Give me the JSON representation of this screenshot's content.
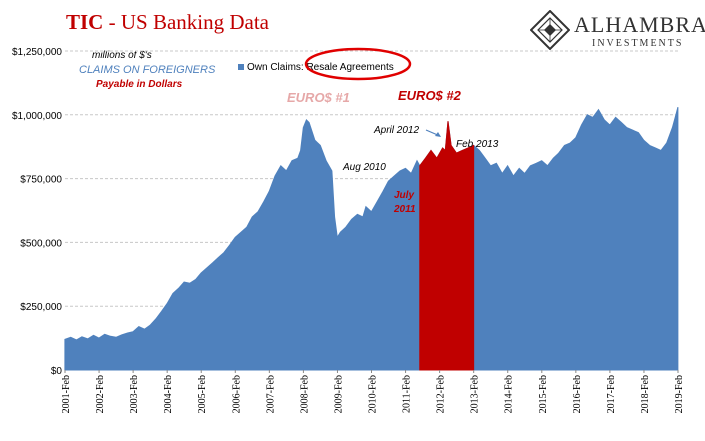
{
  "header": {
    "title_bold": "TIC",
    "title_rest": " - US Banking Data",
    "logo_name": "ALHAMBRA",
    "logo_sub": "INVESTMENTS"
  },
  "notes": {
    "units": "millions of $'s",
    "claims": "CLAIMS ON FOREIGNERS",
    "payable": "Payable in Dollars"
  },
  "colors": {
    "series": "#4f81bd",
    "highlight": "#c00000",
    "circle": "#e00000",
    "title": "#c00000"
  },
  "chart_data": {
    "type": "area",
    "legend": "Own Claims: Resale Agreements",
    "ylim": [
      0,
      1250000
    ],
    "yticks": [
      {
        "v": 0,
        "label": "$0"
      },
      {
        "v": 250000,
        "label": "$250,000"
      },
      {
        "v": 500000,
        "label": "$500,000"
      },
      {
        "v": 750000,
        "label": "$750,000"
      },
      {
        "v": 1000000,
        "label": "$1,000,000"
      },
      {
        "v": 1250000,
        "label": "$1,250,000"
      }
    ],
    "xlabels": [
      "2001-Feb",
      "2002-Feb",
      "2003-Feb",
      "2004-Feb",
      "2005-Feb",
      "2006-Feb",
      "2007-Feb",
      "2008-Feb",
      "2009-Feb",
      "2010-Feb",
      "2011-Feb",
      "2012-Feb",
      "2013-Feb",
      "2014-Feb",
      "2015-Feb",
      "2016-Feb",
      "2017-Feb",
      "2018-Feb",
      "2019-Feb"
    ],
    "x_start": 2001.083,
    "x_end": 2019.083,
    "highlight_range": [
      2011.5,
      2013.083
    ],
    "series": [
      {
        "name": "Own Claims: Resale Agreements",
        "points": [
          [
            2001.08,
            120000
          ],
          [
            2001.25,
            128000
          ],
          [
            2001.42,
            118000
          ],
          [
            2001.58,
            130000
          ],
          [
            2001.75,
            122000
          ],
          [
            2001.92,
            136000
          ],
          [
            2002.08,
            125000
          ],
          [
            2002.25,
            140000
          ],
          [
            2002.42,
            132000
          ],
          [
            2002.58,
            128000
          ],
          [
            2002.75,
            138000
          ],
          [
            2002.92,
            145000
          ],
          [
            2003.08,
            150000
          ],
          [
            2003.25,
            170000
          ],
          [
            2003.42,
            160000
          ],
          [
            2003.58,
            175000
          ],
          [
            2003.75,
            200000
          ],
          [
            2003.92,
            230000
          ],
          [
            2004.08,
            260000
          ],
          [
            2004.25,
            300000
          ],
          [
            2004.42,
            320000
          ],
          [
            2004.58,
            345000
          ],
          [
            2004.75,
            340000
          ],
          [
            2004.92,
            355000
          ],
          [
            2005.08,
            380000
          ],
          [
            2005.25,
            400000
          ],
          [
            2005.42,
            420000
          ],
          [
            2005.58,
            440000
          ],
          [
            2005.75,
            460000
          ],
          [
            2005.92,
            490000
          ],
          [
            2006.08,
            520000
          ],
          [
            2006.25,
            540000
          ],
          [
            2006.42,
            560000
          ],
          [
            2006.58,
            600000
          ],
          [
            2006.75,
            620000
          ],
          [
            2006.92,
            660000
          ],
          [
            2007.08,
            700000
          ],
          [
            2007.25,
            760000
          ],
          [
            2007.42,
            800000
          ],
          [
            2007.58,
            780000
          ],
          [
            2007.75,
            820000
          ],
          [
            2007.92,
            830000
          ],
          [
            2008.0,
            860000
          ],
          [
            2008.08,
            950000
          ],
          [
            2008.17,
            980000
          ],
          [
            2008.25,
            970000
          ],
          [
            2008.42,
            900000
          ],
          [
            2008.58,
            880000
          ],
          [
            2008.75,
            820000
          ],
          [
            2008.92,
            780000
          ],
          [
            2009.0,
            600000
          ],
          [
            2009.08,
            520000
          ],
          [
            2009.17,
            540000
          ],
          [
            2009.33,
            560000
          ],
          [
            2009.5,
            590000
          ],
          [
            2009.67,
            610000
          ],
          [
            2009.83,
            600000
          ],
          [
            2009.92,
            640000
          ],
          [
            2010.08,
            620000
          ],
          [
            2010.25,
            660000
          ],
          [
            2010.42,
            700000
          ],
          [
            2010.58,
            740000
          ],
          [
            2010.75,
            760000
          ],
          [
            2010.92,
            780000
          ],
          [
            2011.08,
            790000
          ],
          [
            2011.25,
            770000
          ],
          [
            2011.42,
            820000
          ],
          [
            2011.5,
            800000
          ],
          [
            2011.67,
            830000
          ],
          [
            2011.83,
            860000
          ],
          [
            2012.0,
            830000
          ],
          [
            2012.17,
            870000
          ],
          [
            2012.25,
            860000
          ],
          [
            2012.33,
            975000
          ],
          [
            2012.42,
            880000
          ],
          [
            2012.58,
            850000
          ],
          [
            2012.75,
            860000
          ],
          [
            2012.92,
            870000
          ],
          [
            2013.08,
            880000
          ],
          [
            2013.25,
            860000
          ],
          [
            2013.42,
            830000
          ],
          [
            2013.58,
            800000
          ],
          [
            2013.75,
            810000
          ],
          [
            2013.92,
            770000
          ],
          [
            2014.08,
            800000
          ],
          [
            2014.25,
            760000
          ],
          [
            2014.42,
            790000
          ],
          [
            2014.58,
            770000
          ],
          [
            2014.75,
            800000
          ],
          [
            2014.92,
            810000
          ],
          [
            2015.08,
            820000
          ],
          [
            2015.25,
            800000
          ],
          [
            2015.42,
            830000
          ],
          [
            2015.58,
            850000
          ],
          [
            2015.75,
            880000
          ],
          [
            2015.92,
            890000
          ],
          [
            2016.08,
            910000
          ],
          [
            2016.25,
            960000
          ],
          [
            2016.42,
            1000000
          ],
          [
            2016.58,
            990000
          ],
          [
            2016.75,
            1020000
          ],
          [
            2016.92,
            980000
          ],
          [
            2017.08,
            960000
          ],
          [
            2017.25,
            990000
          ],
          [
            2017.42,
            970000
          ],
          [
            2017.58,
            950000
          ],
          [
            2017.75,
            940000
          ],
          [
            2017.92,
            930000
          ],
          [
            2018.08,
            900000
          ],
          [
            2018.25,
            880000
          ],
          [
            2018.42,
            870000
          ],
          [
            2018.58,
            860000
          ],
          [
            2018.75,
            890000
          ],
          [
            2018.92,
            950000
          ],
          [
            2019.0,
            990000
          ],
          [
            2019.08,
            1030000
          ]
        ]
      }
    ],
    "annotations": {
      "euro1": "EURO$ #1",
      "euro2": "EURO$ #2",
      "aug2010": "Aug 2010",
      "april2012": "April 2012",
      "feb2013": "Feb 2013",
      "july2011_a": "July",
      "july2011_b": "2011"
    }
  }
}
